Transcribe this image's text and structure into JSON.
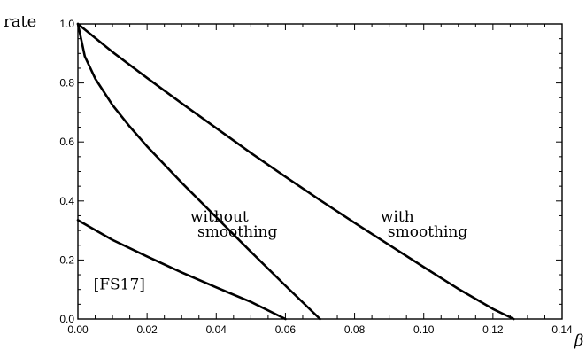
{
  "chart_data": {
    "type": "line",
    "title": "",
    "xlabel": "β",
    "ylabel": "rate",
    "xlim": [
      0,
      0.14
    ],
    "ylim": [
      0,
      1.0
    ],
    "xticks": [
      "0.00",
      "0.02",
      "0.04",
      "0.06",
      "0.08",
      "0.10",
      "0.12",
      "0.14"
    ],
    "yticks": [
      "0.0",
      "0.2",
      "0.4",
      "0.6",
      "0.8",
      "1.0"
    ],
    "grid": false,
    "legend": "none",
    "series": [
      {
        "x": [
          0,
          0.01,
          0.02,
          0.03,
          0.04,
          0.05,
          0.06,
          0.07,
          0.08,
          0.09,
          0.1,
          0.11,
          0.12,
          0.126
        ],
        "y": [
          1.0,
          0.905,
          0.817,
          0.731,
          0.647,
          0.563,
          0.482,
          0.403,
          0.326,
          0.251,
          0.176,
          0.102,
          0.034,
          0.0
        ]
      },
      {
        "x": [
          0,
          0.002,
          0.005,
          0.01,
          0.015,
          0.02,
          0.03,
          0.04,
          0.05,
          0.06,
          0.07
        ],
        "y": [
          1.0,
          0.89,
          0.815,
          0.725,
          0.652,
          0.585,
          0.462,
          0.345,
          0.228,
          0.113,
          0.0
        ]
      },
      {
        "x": [
          0,
          0.01,
          0.02,
          0.03,
          0.04,
          0.05,
          0.06
        ],
        "y": [
          0.335,
          0.268,
          0.212,
          0.158,
          0.107,
          0.058,
          0.0
        ]
      }
    ],
    "annotations": [
      {
        "lines": [
          "with",
          "smoothing"
        ],
        "x": 0.0875,
        "y": 0.33
      },
      {
        "lines": [
          "without",
          "smoothing"
        ],
        "x": 0.0325,
        "y": 0.33
      },
      {
        "lines": [
          "[FS17]"
        ],
        "x": 0.0045,
        "y": 0.1
      }
    ]
  }
}
